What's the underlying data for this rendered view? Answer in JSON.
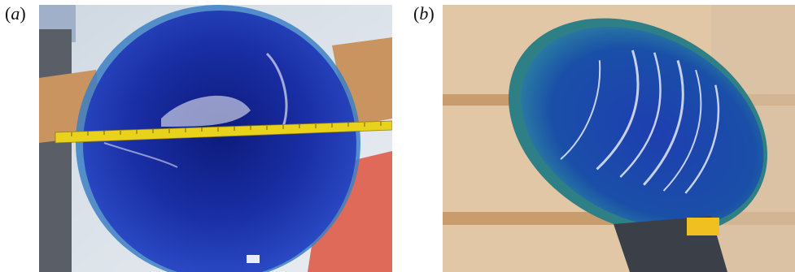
{
  "panels": [
    {
      "label_open": "(",
      "label_letter": "a",
      "label_close": ")"
    },
    {
      "label_open": "(",
      "label_letter": "b",
      "label_close": ")"
    }
  ],
  "colors": {
    "ice_blue": "#1a2fa6",
    "ice_deep": "#0b1766",
    "ruler_yellow": "#e9d21c",
    "wood": "#c9945f",
    "floor_red": "#e06a5a",
    "shelf_beige": "#d9b896"
  }
}
